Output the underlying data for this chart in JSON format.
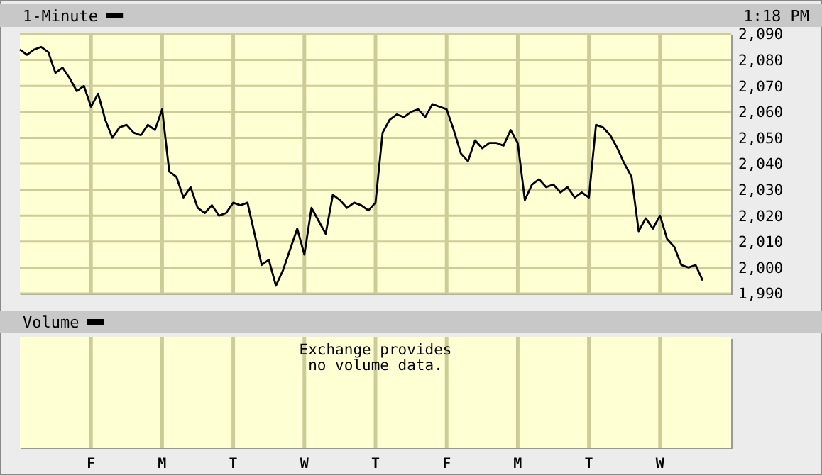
{
  "chart_data": [
    {
      "type": "line",
      "title": "1-Minute",
      "annotations": [
        "1:18 PM"
      ],
      "color": "#000000",
      "categories": [
        null,
        null,
        null,
        null,
        null,
        null,
        null,
        null,
        null,
        null,
        null,
        null,
        null,
        null,
        null,
        null,
        null,
        null,
        null,
        null,
        null,
        null,
        null,
        null,
        null,
        null,
        null,
        null,
        null,
        null,
        null,
        null,
        null,
        null,
        null,
        null,
        null,
        null,
        null,
        null,
        null,
        null,
        null,
        null,
        null,
        null,
        null,
        null,
        null,
        null,
        null,
        null,
        null,
        null,
        null,
        null,
        null,
        null,
        null,
        null,
        null,
        null,
        null,
        null,
        null,
        null,
        null,
        null,
        null,
        null,
        null,
        null,
        null,
        null,
        null,
        null,
        null,
        null,
        null,
        null,
        null,
        null,
        null,
        null,
        null,
        null,
        null,
        null,
        null,
        null,
        null,
        null,
        null,
        null,
        null,
        null,
        null,
        null,
        null,
        null,
        null
      ],
      "values": [
        2084,
        2082,
        2084,
        2085,
        2083,
        2075,
        2077,
        2073,
        2068,
        2070,
        2062,
        2067,
        2057,
        2050,
        2054,
        2055,
        2052,
        2051,
        2055,
        2053,
        2061,
        2037,
        2035,
        2027,
        2031,
        2023,
        2021,
        2024,
        2020,
        2021,
        2025,
        2024,
        2025,
        2013,
        2001,
        2003,
        1993,
        1999,
        2007,
        2015,
        2005,
        2023,
        2018,
        2013,
        2028,
        2026,
        2023,
        2025,
        2024,
        2022,
        2025,
        2052,
        2057,
        2059,
        2058,
        2060,
        2061,
        2058,
        2063,
        2062,
        2061,
        2053,
        2044,
        2041,
        2049,
        2046,
        2048,
        2048,
        2047,
        2053,
        2048,
        2026,
        2032,
        2034,
        2031,
        2032,
        2029,
        2031,
        2027,
        2029,
        2027,
        2055,
        2054,
        2051,
        2046,
        2040,
        2035,
        2014,
        2019,
        2015,
        2020,
        2011,
        2008,
        2001,
        2000,
        2001,
        1995,
        null,
        null,
        null,
        null
      ],
      "ylim": [
        1990,
        2090
      ],
      "yticks": [
        {
          "value": 2090,
          "label": "2,090"
        },
        {
          "value": 2080,
          "label": "2,080"
        },
        {
          "value": 2070,
          "label": "2,070"
        },
        {
          "value": 2060,
          "label": "2,060"
        },
        {
          "value": 2050,
          "label": "2,050"
        },
        {
          "value": 2040,
          "label": "2,040"
        },
        {
          "value": 2030,
          "label": "2,030"
        },
        {
          "value": 2020,
          "label": "2,020"
        },
        {
          "value": 2010,
          "label": "2,010"
        },
        {
          "value": 2000,
          "label": "2,000"
        },
        {
          "value": 1990,
          "label": "1,990"
        }
      ],
      "grid": true,
      "tick_labels": "y"
    },
    {
      "type": "other",
      "title": "Volume",
      "annotations": [
        "Exchange provides\nno volume data."
      ],
      "categories": [
        null,
        null,
        null,
        null,
        null,
        null,
        null,
        null,
        null,
        null,
        "F",
        null,
        null,
        null,
        null,
        null,
        null,
        null,
        null,
        null,
        "M",
        null,
        null,
        null,
        null,
        null,
        null,
        null,
        null,
        null,
        "T",
        null,
        null,
        null,
        null,
        null,
        null,
        null,
        null,
        null,
        "W",
        null,
        null,
        null,
        null,
        null,
        null,
        null,
        null,
        null,
        "T",
        null,
        null,
        null,
        null,
        null,
        null,
        null,
        null,
        null,
        "F",
        null,
        null,
        null,
        null,
        null,
        null,
        null,
        null,
        null,
        "M",
        null,
        null,
        null,
        null,
        null,
        null,
        null,
        null,
        null,
        "T",
        null,
        null,
        null,
        null,
        null,
        null,
        null,
        null,
        null,
        "W",
        null,
        null,
        null,
        null,
        null,
        null,
        null,
        null,
        null,
        null
      ]
    }
  ]
}
